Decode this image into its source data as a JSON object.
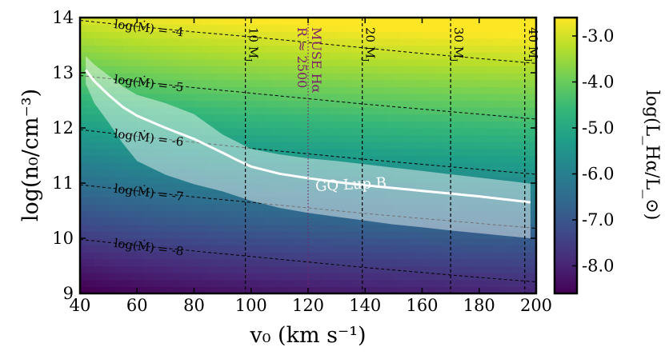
{
  "chart_data": {
    "type": "heatmap",
    "xlabel": "v₀ (km s⁻¹)",
    "ylabel": "log(n₀/cm⁻³)",
    "colorbar_label": "log(L_Hα/L_⊙)",
    "xlim": [
      40,
      200
    ],
    "ylim": [
      9,
      14
    ],
    "x_ticks": [
      40,
      60,
      80,
      100,
      120,
      140,
      160,
      180,
      200
    ],
    "y_ticks": [
      9,
      10,
      11,
      12,
      13,
      14
    ],
    "colorbar_range": [
      -8.6,
      -2.6
    ],
    "colorbar_ticks": [
      "-8.0",
      "-7.0",
      "-6.0",
      "-5.0",
      "-4.0",
      "-3.0"
    ],
    "colormap": [
      "#440154",
      "#482878",
      "#3e4a89",
      "#31688e",
      "#26828e",
      "#1f9e89",
      "#35b779",
      "#6ece58",
      "#b5de2b",
      "#fde725"
    ],
    "accretion_contours": [
      {
        "label": "log(Ṁ) = -4",
        "value": -4,
        "label_x": 52,
        "points": [
          [
            40,
            13.95
          ],
          [
            60,
            13.84
          ],
          [
            80,
            13.74
          ],
          [
            100,
            13.65
          ],
          [
            120,
            13.55
          ],
          [
            140,
            13.45
          ],
          [
            160,
            13.35
          ],
          [
            180,
            13.26
          ],
          [
            200,
            13.17
          ]
        ]
      },
      {
        "label": "log(Ṁ) = -5",
        "value": -5,
        "label_x": 52,
        "points": [
          [
            40,
            12.95
          ],
          [
            60,
            12.84
          ],
          [
            80,
            12.73
          ],
          [
            100,
            12.63
          ],
          [
            120,
            12.53
          ],
          [
            140,
            12.43
          ],
          [
            160,
            12.34
          ],
          [
            180,
            12.25
          ],
          [
            200,
            12.16
          ]
        ]
      },
      {
        "label": "log(Ṁ) = -6",
        "value": -6,
        "label_x": 52,
        "points": [
          [
            40,
            11.97
          ],
          [
            60,
            11.85
          ],
          [
            80,
            11.74
          ],
          [
            100,
            11.63
          ],
          [
            120,
            11.53
          ],
          [
            140,
            11.43
          ],
          [
            160,
            11.34
          ],
          [
            180,
            11.25
          ],
          [
            200,
            11.16
          ]
        ]
      },
      {
        "label": "log(Ṁ) = -7",
        "value": -7,
        "label_x": 52,
        "points": [
          [
            40,
            10.97
          ],
          [
            60,
            10.86
          ],
          [
            80,
            10.75
          ],
          [
            100,
            10.65
          ],
          [
            120,
            10.55
          ],
          [
            140,
            10.45
          ],
          [
            160,
            10.36
          ],
          [
            180,
            10.27
          ],
          [
            200,
            10.18
          ]
        ]
      },
      {
        "label": "log(Ṁ) = -8",
        "value": -8,
        "label_x": 52,
        "points": [
          [
            40,
            9.98
          ],
          [
            60,
            9.87
          ],
          [
            80,
            9.77
          ],
          [
            100,
            9.67
          ],
          [
            120,
            9.57
          ],
          [
            140,
            9.47
          ],
          [
            160,
            9.38
          ],
          [
            180,
            9.29
          ],
          [
            200,
            9.21
          ]
        ]
      }
    ],
    "mass_lines": [
      {
        "label": "10 M_J",
        "main": "10 M",
        "sub": "J",
        "x": 98
      },
      {
        "label": "20 M_J",
        "main": "20 M",
        "sub": "J",
        "x": 139
      },
      {
        "label": "30 M_J",
        "main": "30 M",
        "sub": "J",
        "x": 170
      },
      {
        "label": "40 M_J",
        "main": "40 M",
        "sub": "J",
        "x": 196
      }
    ],
    "muse_line": {
      "x": 120,
      "line1": "MUSE Hα",
      "line2": "R ≈ 2500"
    },
    "gq_lup_b": {
      "label": "GQ Lup B",
      "label_x": 135,
      "line": [
        [
          42,
          13.05
        ],
        [
          45,
          12.85
        ],
        [
          50,
          12.6
        ],
        [
          55,
          12.38
        ],
        [
          60,
          12.22
        ],
        [
          70,
          12.0
        ],
        [
          80,
          11.8
        ],
        [
          90,
          11.55
        ],
        [
          95,
          11.42
        ],
        [
          100,
          11.3
        ],
        [
          110,
          11.17
        ],
        [
          120,
          11.09
        ],
        [
          130,
          11.02
        ],
        [
          140,
          10.96
        ],
        [
          150,
          10.91
        ],
        [
          160,
          10.86
        ],
        [
          170,
          10.81
        ],
        [
          180,
          10.76
        ],
        [
          190,
          10.7
        ],
        [
          198,
          10.65
        ]
      ],
      "band_upper": [
        [
          42,
          13.3
        ],
        [
          45,
          13.15
        ],
        [
          50,
          12.95
        ],
        [
          55,
          12.75
        ],
        [
          60,
          12.6
        ],
        [
          70,
          12.45
        ],
        [
          80,
          12.25
        ],
        [
          90,
          11.88
        ],
        [
          100,
          11.62
        ],
        [
          110,
          11.52
        ],
        [
          120,
          11.45
        ],
        [
          130,
          11.4
        ],
        [
          140,
          11.34
        ],
        [
          150,
          11.28
        ],
        [
          160,
          11.22
        ],
        [
          170,
          11.16
        ],
        [
          180,
          11.1
        ],
        [
          190,
          11.04
        ],
        [
          198,
          10.99
        ]
      ],
      "band_lower": [
        [
          42,
          12.8
        ],
        [
          45,
          12.45
        ],
        [
          50,
          12.1
        ],
        [
          55,
          11.72
        ],
        [
          60,
          11.4
        ],
        [
          70,
          11.15
        ],
        [
          80,
          10.98
        ],
        [
          90,
          10.85
        ],
        [
          100,
          10.68
        ],
        [
          110,
          10.55
        ],
        [
          120,
          10.46
        ],
        [
          130,
          10.39
        ],
        [
          140,
          10.32
        ],
        [
          150,
          10.25
        ],
        [
          160,
          10.2
        ],
        [
          170,
          10.14
        ],
        [
          180,
          10.09
        ],
        [
          190,
          10.04
        ],
        [
          198,
          10.0
        ]
      ]
    },
    "luminosity_model": {
      "at_x40_y9": -8.7,
      "per_log_n0": 1.15,
      "per_log_v0": 1.0,
      "clip": [
        -8.7,
        -2.6
      ]
    }
  }
}
